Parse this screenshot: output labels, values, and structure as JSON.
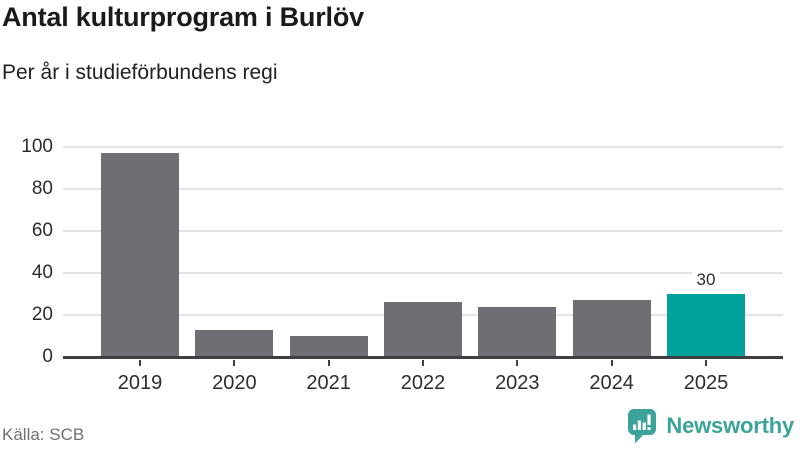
{
  "header": {
    "title": "Antal kulturprogram i Burlöv",
    "subtitle": "Per år i studieförbundens regi"
  },
  "chart_data": {
    "type": "bar",
    "title": "Antal kulturprogram i Burlöv",
    "subtitle": "Per år i studieförbundens regi",
    "categories": [
      "2019",
      "2020",
      "2021",
      "2022",
      "2023",
      "2024",
      "2025"
    ],
    "values": [
      97,
      13,
      10,
      26,
      24,
      27,
      30
    ],
    "highlight_index": 6,
    "highlight_label": "30",
    "xlabel": "",
    "ylabel": "",
    "ylim": [
      0,
      100
    ],
    "yticks": [
      0,
      20,
      40,
      60,
      80,
      100
    ],
    "grid": true,
    "legend": "none",
    "bar_color": "#6e6e74",
    "highlight_color": "#00a29b",
    "gridline_color": "#e4e4e4",
    "axis_color": "#3e3e43"
  },
  "footer": {
    "source": "Källa: SCB",
    "brand": "Newsworthy",
    "brand_color": "#3ba39a"
  },
  "icons": {
    "brand_logo": "newsworthy-speech-bubble-bar-chart-icon"
  }
}
